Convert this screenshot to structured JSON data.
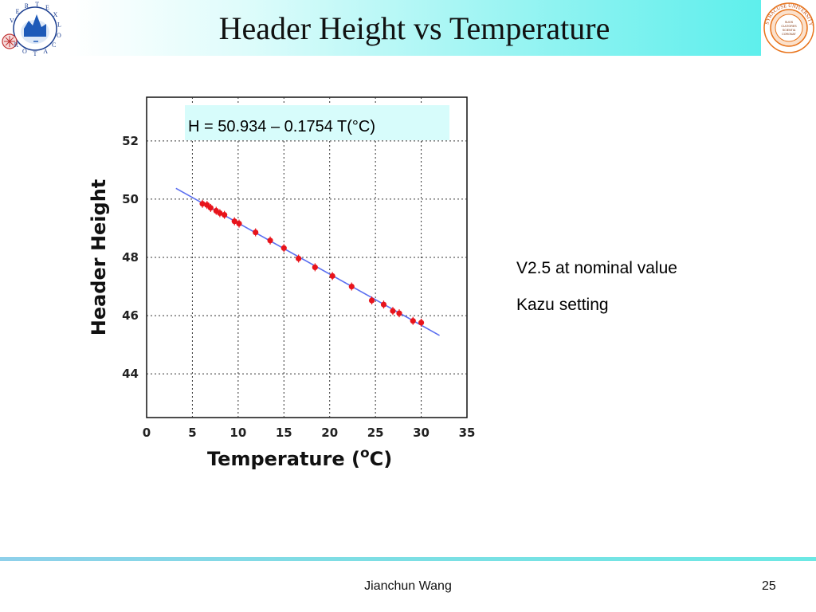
{
  "slide": {
    "title": "Header Height vs Temperature",
    "notes": [
      "V2.5 at nominal value",
      "Kazu setting"
    ],
    "footer_author": "Jianchun Wang",
    "page_number": "25"
  },
  "logos": {
    "left_letters": [
      "V",
      "E",
      "R",
      "T",
      "E",
      "X",
      "L",
      "O",
      "C",
      "A",
      "T",
      "O",
      "R"
    ],
    "right_ring_text": "SYRACUSE UNIVERSITY · FOUNDED AD 1870",
    "right_center_lines": [
      "SUOS",
      "CULTORES",
      "SCIENTIA",
      "CORONAT"
    ]
  },
  "chart_data": {
    "type": "scatter",
    "xlabel": "Temperature (",
    "xlabel_degree": "o",
    "xlabel_unit": "C)",
    "ylabel": "Header Height",
    "xlim": [
      0,
      35
    ],
    "ylim": [
      42.5,
      53.5
    ],
    "xticks": [
      0,
      5,
      10,
      15,
      20,
      25,
      30,
      35
    ],
    "yticks": [
      44,
      46,
      48,
      50,
      52
    ],
    "grid": true,
    "annotation": "H = 50.934 – 0.1754 T(°C)",
    "fit": {
      "intercept": 50.934,
      "slope": -0.1754,
      "x_range": [
        3.2,
        32.0
      ]
    },
    "series": [
      {
        "x": [
          6.1,
          6.6,
          7.0,
          7.6,
          8.0,
          8.5,
          9.6,
          10.1,
          11.9,
          13.5,
          15.0,
          16.6,
          18.4,
          20.3,
          22.4,
          24.6,
          25.9,
          26.9,
          27.6,
          29.1,
          30.0
        ],
        "y": [
          49.84,
          49.8,
          49.7,
          49.6,
          49.52,
          49.46,
          49.24,
          49.16,
          48.86,
          48.58,
          48.32,
          47.96,
          47.66,
          47.36,
          47.0,
          46.52,
          46.38,
          46.16,
          46.08,
          45.82,
          45.76
        ]
      }
    ]
  },
  "colors": {
    "fit_line": "#5b6ff0",
    "marker": "#e8141b",
    "grid": "#333333",
    "annotation_bg": "#d7fcfb"
  }
}
